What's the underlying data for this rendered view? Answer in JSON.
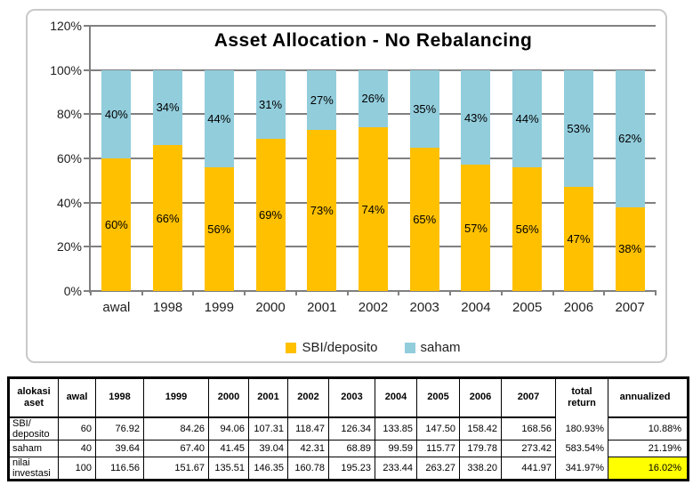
{
  "chart_data": {
    "type": "bar",
    "stacked": true,
    "title": "Asset Allocation - No Rebalancing",
    "categories": [
      "awal",
      "1998",
      "1999",
      "2000",
      "2001",
      "2002",
      "2003",
      "2004",
      "2005",
      "2006",
      "2007"
    ],
    "series": [
      {
        "name": "SBI/deposito",
        "color": "#FFC000",
        "values": [
          60,
          66,
          56,
          69,
          73,
          74,
          65,
          57,
          56,
          47,
          38
        ],
        "labels": [
          "60%",
          "66%",
          "56%",
          "69%",
          "73%",
          "74%",
          "65%",
          "57%",
          "56%",
          "47%",
          "38%"
        ]
      },
      {
        "name": "saham",
        "color": "#92CDDC",
        "values": [
          40,
          34,
          44,
          31,
          27,
          26,
          35,
          43,
          44,
          53,
          62
        ],
        "labels": [
          "40%",
          "34%",
          "44%",
          "31%",
          "27%",
          "26%",
          "35%",
          "43%",
          "44%",
          "53%",
          "62%"
        ]
      }
    ],
    "xlabel": "",
    "ylabel": "",
    "ylim": [
      0,
      120
    ],
    "yticks": {
      "values": [
        120,
        100,
        80,
        60,
        40,
        20,
        0
      ],
      "labels": [
        "120%",
        "100%",
        "80%",
        "60%",
        "40%",
        "20%",
        "0%"
      ]
    },
    "grid": true,
    "legend_position": "bottom",
    "grid_color": "#808080",
    "highlight_color": "#FFFF00"
  },
  "table": {
    "headers": [
      "alokasi\naset",
      "awal",
      "1998",
      "1999",
      "2000",
      "2001",
      "2002",
      "2003",
      "2004",
      "2005",
      "2006",
      "2007",
      "total\nreturn",
      "annualized"
    ],
    "rows": [
      {
        "cells": [
          "SBI/\ndeposito",
          "60",
          "76.92",
          "84.26",
          "94.06",
          "107.31",
          "118.47",
          "126.34",
          "133.85",
          "147.50",
          "158.42",
          "168.56",
          "180.93%",
          "10.88%"
        ]
      },
      {
        "cells": [
          "saham",
          "40",
          "39.64",
          "67.40",
          "41.45",
          "39.04",
          "42.31",
          "68.89",
          "99.59",
          "115.77",
          "179.78",
          "273.42",
          "583.54%",
          "21.19%"
        ]
      },
      {
        "cells": [
          "nilai\ninvestasi",
          "100",
          "116.56",
          "151.67",
          "135.51",
          "146.35",
          "160.78",
          "195.23",
          "233.44",
          "263.27",
          "338.20",
          "441.97",
          "341.97%",
          "16.02%"
        ]
      }
    ]
  }
}
